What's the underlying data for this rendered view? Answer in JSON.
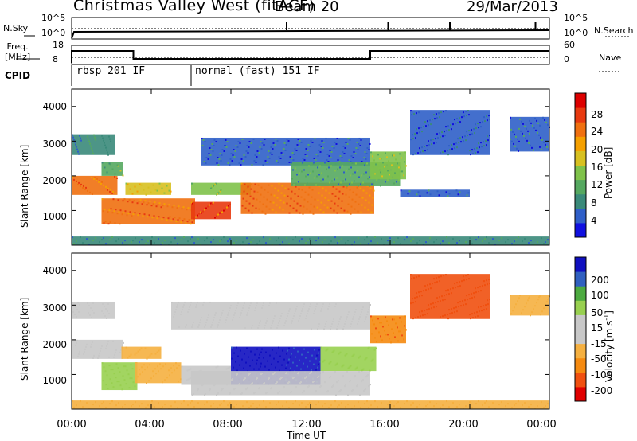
{
  "header": {
    "title": "Christmas Valley West (fitACF)",
    "beam": "Beam 20",
    "date": "29/Mar/2013"
  },
  "summary": {
    "nsky_label": "N.Sky",
    "nsearch_label": "N.Search",
    "freq_label_1": "Freq.",
    "freq_label_2": "[MHz]",
    "nave_label": "Nave",
    "cpid_label": "CPID",
    "nsky_ticks": [
      "10^5",
      "10^0"
    ],
    "nsearch_ticks": [
      "10^5",
      "10^0"
    ],
    "freq_ticks": [
      "18",
      "8"
    ],
    "nave_ticks": [
      "60",
      "0"
    ],
    "cpid_segments": [
      {
        "label": "rbsp 201 IF",
        "start_hour": 0.0,
        "end_hour": 6.0
      },
      {
        "label": "normal (fast) 151 IF",
        "start_hour": 6.0,
        "end_hour": 24.0
      }
    ]
  },
  "chart_data": [
    {
      "type": "heatmap",
      "title": "",
      "xlabel": "Time UT",
      "ylabel": "Slant Range [km]",
      "xlim": [
        0,
        24
      ],
      "ylim": [
        0,
        4500
      ],
      "x_ticks": [
        "00:00",
        "04:00",
        "08:00",
        "12:00",
        "16:00",
        "20:00",
        "00:00"
      ],
      "y_ticks": [
        1000,
        2000,
        3000,
        4000
      ],
      "colorbar": {
        "label": "Power [dB]",
        "range": [
          0,
          32
        ],
        "ticks": [
          4,
          8,
          12,
          16,
          20,
          24,
          28
        ],
        "colors": [
          "#1010e0",
          "#2f5fc8",
          "#3a8a7a",
          "#55a860",
          "#7fc24a",
          "#d7c020",
          "#f5a000",
          "#f07010",
          "#e83a10",
          "#dd0000"
        ]
      },
      "bands": [
        {
          "t0": 0.0,
          "t1": 2.3,
          "r0": 1450,
          "r1": 2000,
          "level": 24
        },
        {
          "t0": 1.5,
          "t1": 2.6,
          "r0": 2000,
          "r1": 2400,
          "level": 12
        },
        {
          "t0": 0.0,
          "t1": 2.2,
          "r0": 2600,
          "r1": 3200,
          "level": 8
        },
        {
          "t0": 2.7,
          "t1": 5.0,
          "r0": 1450,
          "r1": 1800,
          "level": 18
        },
        {
          "t0": 1.5,
          "t1": 6.2,
          "r0": 600,
          "r1": 1350,
          "level": 24
        },
        {
          "t0": 6.0,
          "t1": 8.0,
          "r0": 750,
          "r1": 1250,
          "level": 26
        },
        {
          "t0": 6.0,
          "t1": 9.0,
          "r0": 1450,
          "r1": 1800,
          "level": 14
        },
        {
          "t0": 8.5,
          "t1": 15.2,
          "r0": 900,
          "r1": 1800,
          "level": 24
        },
        {
          "t0": 6.5,
          "t1": 15.0,
          "r0": 2300,
          "r1": 3100,
          "level": 6
        },
        {
          "t0": 11.0,
          "t1": 16.5,
          "r0": 1700,
          "r1": 2400,
          "level": 10
        },
        {
          "t0": 15.0,
          "t1": 16.8,
          "r0": 1900,
          "r1": 2700,
          "level": 14
        },
        {
          "t0": 16.5,
          "t1": 20.0,
          "r0": 1400,
          "r1": 1600,
          "level": 6
        },
        {
          "t0": 17.0,
          "t1": 21.0,
          "r0": 2600,
          "r1": 3900,
          "level": 5
        },
        {
          "t0": 22.0,
          "t1": 24.0,
          "r0": 2700,
          "r1": 3700,
          "level": 6
        },
        {
          "t0": 0.0,
          "t1": 24.0,
          "r0": 0,
          "r1": 250,
          "level": 8
        }
      ]
    },
    {
      "type": "heatmap",
      "title": "",
      "xlabel": "Time UT",
      "ylabel": "Slant Range [km]",
      "xlim": [
        0,
        24
      ],
      "ylim": [
        0,
        4500
      ],
      "x_ticks": [
        "00:00",
        "04:00",
        "08:00",
        "12:00",
        "16:00",
        "20:00",
        "00:00"
      ],
      "y_ticks": [
        1000,
        2000,
        3000,
        4000
      ],
      "colorbar": {
        "label": "Velocity [m s^-1]",
        "range": [
          -250,
          250
        ],
        "ticks": [
          "200",
          "100",
          "50",
          "15",
          "-15",
          "-50",
          "-100",
          "-200"
        ],
        "colors": [
          "#e00000",
          "#f05010",
          "#f58a10",
          "#f5b040",
          "#c8c8c8",
          "#c8c8c8",
          "#98d050",
          "#4caa40",
          "#3060c0",
          "#1010c0"
        ]
      },
      "bands": [
        {
          "t0": 0.0,
          "t1": 2.6,
          "r0": 1450,
          "r1": 2000,
          "level": 0
        },
        {
          "t0": 0.0,
          "t1": 2.2,
          "r0": 2600,
          "r1": 3100,
          "level": 0
        },
        {
          "t0": 2.5,
          "t1": 4.5,
          "r0": 1450,
          "r1": 1800,
          "level": -60
        },
        {
          "t0": 1.5,
          "t1": 3.3,
          "r0": 550,
          "r1": 1350,
          "level": 70
        },
        {
          "t0": 3.2,
          "t1": 5.5,
          "r0": 750,
          "r1": 1350,
          "level": -70
        },
        {
          "t0": 5.5,
          "t1": 8.0,
          "r0": 700,
          "r1": 1250,
          "level": 0
        },
        {
          "t0": 8.0,
          "t1": 12.5,
          "r0": 700,
          "r1": 1800,
          "level": 200
        },
        {
          "t0": 12.5,
          "t1": 15.3,
          "r0": 1100,
          "r1": 1800,
          "level": 80
        },
        {
          "t0": 6.0,
          "t1": 15.0,
          "r0": 400,
          "r1": 1100,
          "level": 0
        },
        {
          "t0": 5.0,
          "t1": 15.0,
          "r0": 2300,
          "r1": 3100,
          "level": 0
        },
        {
          "t0": 15.0,
          "t1": 16.8,
          "r0": 1900,
          "r1": 2700,
          "level": -150
        },
        {
          "t0": 17.0,
          "t1": 21.0,
          "r0": 2600,
          "r1": 3900,
          "level": -180
        },
        {
          "t0": 22.0,
          "t1": 24.0,
          "r0": 2700,
          "r1": 3300,
          "level": -80
        },
        {
          "t0": 0.0,
          "t1": 24.0,
          "r0": 0,
          "r1": 250,
          "level": -60
        }
      ]
    }
  ]
}
